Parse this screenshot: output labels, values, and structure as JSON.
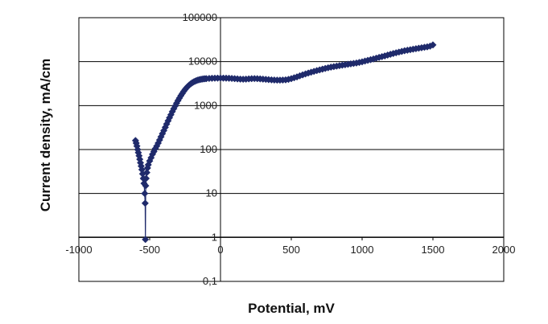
{
  "chart_data": {
    "type": "scatter",
    "title": "",
    "xlabel": "Potential, mV",
    "ylabel": "Current density, mA/cm",
    "x_scale": "linear",
    "y_scale": "log",
    "xlim": [
      -1000,
      2000
    ],
    "ylim": [
      0.1,
      100000
    ],
    "x_ticks": [
      "-1000",
      "-500",
      "0",
      "500",
      "1000",
      "1500",
      "2000"
    ],
    "y_ticks": [
      "100000",
      "10000",
      "1000",
      "100",
      "10",
      "1",
      "0,1"
    ],
    "grid": "horizontal major",
    "legend": "none",
    "series": [
      {
        "marker": "diamond",
        "color": "#1f2a6b",
        "points": [
          {
            "x": -600,
            "y": 160
          },
          {
            "x": -595,
            "y": 140
          },
          {
            "x": -590,
            "y": 120
          },
          {
            "x": -585,
            "y": 100
          },
          {
            "x": -580,
            "y": 85
          },
          {
            "x": -575,
            "y": 72
          },
          {
            "x": -570,
            "y": 60
          },
          {
            "x": -565,
            "y": 50
          },
          {
            "x": -560,
            "y": 42
          },
          {
            "x": -555,
            "y": 35
          },
          {
            "x": -550,
            "y": 28
          },
          {
            "x": -545,
            "y": 22
          },
          {
            "x": -540,
            "y": 17
          },
          {
            "x": -535,
            "y": 10
          },
          {
            "x": -532,
            "y": 6
          },
          {
            "x": -530,
            "y": 0.9
          },
          {
            "x": -528,
            "y": 15
          },
          {
            "x": -525,
            "y": 22
          },
          {
            "x": -520,
            "y": 30
          },
          {
            "x": -515,
            "y": 38
          },
          {
            "x": -510,
            "y": 45
          },
          {
            "x": -500,
            "y": 55
          },
          {
            "x": -490,
            "y": 65
          },
          {
            "x": -480,
            "y": 78
          },
          {
            "x": -470,
            "y": 90
          },
          {
            "x": -460,
            "y": 105
          },
          {
            "x": -450,
            "y": 120
          },
          {
            "x": -440,
            "y": 140
          },
          {
            "x": -430,
            "y": 165
          },
          {
            "x": -420,
            "y": 195
          },
          {
            "x": -410,
            "y": 230
          },
          {
            "x": -400,
            "y": 270
          },
          {
            "x": -390,
            "y": 320
          },
          {
            "x": -380,
            "y": 380
          },
          {
            "x": -370,
            "y": 450
          },
          {
            "x": -360,
            "y": 530
          },
          {
            "x": -350,
            "y": 620
          },
          {
            "x": -340,
            "y": 730
          },
          {
            "x": -330,
            "y": 850
          },
          {
            "x": -320,
            "y": 980
          },
          {
            "x": -310,
            "y": 1130
          },
          {
            "x": -300,
            "y": 1300
          },
          {
            "x": -290,
            "y": 1480
          },
          {
            "x": -280,
            "y": 1680
          },
          {
            "x": -270,
            "y": 1880
          },
          {
            "x": -260,
            "y": 2100
          },
          {
            "x": -250,
            "y": 2320
          },
          {
            "x": -240,
            "y": 2540
          },
          {
            "x": -230,
            "y": 2750
          },
          {
            "x": -220,
            "y": 2950
          },
          {
            "x": -210,
            "y": 3130
          },
          {
            "x": -200,
            "y": 3300
          },
          {
            "x": -190,
            "y": 3450
          },
          {
            "x": -180,
            "y": 3580
          },
          {
            "x": -170,
            "y": 3700
          },
          {
            "x": -160,
            "y": 3800
          },
          {
            "x": -150,
            "y": 3880
          },
          {
            "x": -140,
            "y": 3950
          },
          {
            "x": -130,
            "y": 4000
          },
          {
            "x": -120,
            "y": 4050
          },
          {
            "x": -110,
            "y": 4080
          },
          {
            "x": -100,
            "y": 4100
          },
          {
            "x": -80,
            "y": 4150
          },
          {
            "x": -60,
            "y": 4180
          },
          {
            "x": -40,
            "y": 4200
          },
          {
            "x": -20,
            "y": 4220
          },
          {
            "x": 0,
            "y": 4230
          },
          {
            "x": 20,
            "y": 4220
          },
          {
            "x": 40,
            "y": 4200
          },
          {
            "x": 60,
            "y": 4180
          },
          {
            "x": 80,
            "y": 4150
          },
          {
            "x": 100,
            "y": 4100
          },
          {
            "x": 120,
            "y": 4050
          },
          {
            "x": 140,
            "y": 4000
          },
          {
            "x": 160,
            "y": 3980
          },
          {
            "x": 180,
            "y": 4000
          },
          {
            "x": 200,
            "y": 4050
          },
          {
            "x": 220,
            "y": 4100
          },
          {
            "x": 240,
            "y": 4120
          },
          {
            "x": 260,
            "y": 4100
          },
          {
            "x": 280,
            "y": 4050
          },
          {
            "x": 300,
            "y": 4000
          },
          {
            "x": 320,
            "y": 3950
          },
          {
            "x": 340,
            "y": 3900
          },
          {
            "x": 360,
            "y": 3850
          },
          {
            "x": 380,
            "y": 3820
          },
          {
            "x": 400,
            "y": 3800
          },
          {
            "x": 420,
            "y": 3800
          },
          {
            "x": 440,
            "y": 3820
          },
          {
            "x": 460,
            "y": 3850
          },
          {
            "x": 480,
            "y": 3950
          },
          {
            "x": 500,
            "y": 4100
          },
          {
            "x": 520,
            "y": 4300
          },
          {
            "x": 540,
            "y": 4500
          },
          {
            "x": 560,
            "y": 4750
          },
          {
            "x": 580,
            "y": 5000
          },
          {
            "x": 600,
            "y": 5250
          },
          {
            "x": 620,
            "y": 5500
          },
          {
            "x": 640,
            "y": 5750
          },
          {
            "x": 660,
            "y": 6000
          },
          {
            "x": 680,
            "y": 6250
          },
          {
            "x": 700,
            "y": 6500
          },
          {
            "x": 720,
            "y": 6750
          },
          {
            "x": 740,
            "y": 7000
          },
          {
            "x": 760,
            "y": 7250
          },
          {
            "x": 780,
            "y": 7500
          },
          {
            "x": 800,
            "y": 7700
          },
          {
            "x": 820,
            "y": 7900
          },
          {
            "x": 840,
            "y": 8100
          },
          {
            "x": 860,
            "y": 8300
          },
          {
            "x": 880,
            "y": 8500
          },
          {
            "x": 900,
            "y": 8700
          },
          {
            "x": 920,
            "y": 8900
          },
          {
            "x": 940,
            "y": 9100
          },
          {
            "x": 960,
            "y": 9300
          },
          {
            "x": 980,
            "y": 9600
          },
          {
            "x": 1000,
            "y": 9900
          },
          {
            "x": 1020,
            "y": 10300
          },
          {
            "x": 1040,
            "y": 10700
          },
          {
            "x": 1060,
            "y": 11100
          },
          {
            "x": 1080,
            "y": 11500
          },
          {
            "x": 1100,
            "y": 12000
          },
          {
            "x": 1120,
            "y": 12500
          },
          {
            "x": 1140,
            "y": 13000
          },
          {
            "x": 1160,
            "y": 13500
          },
          {
            "x": 1180,
            "y": 14100
          },
          {
            "x": 1200,
            "y": 14700
          },
          {
            "x": 1220,
            "y": 15300
          },
          {
            "x": 1240,
            "y": 15900
          },
          {
            "x": 1260,
            "y": 16500
          },
          {
            "x": 1280,
            "y": 17100
          },
          {
            "x": 1300,
            "y": 17700
          },
          {
            "x": 1320,
            "y": 18200
          },
          {
            "x": 1340,
            "y": 18700
          },
          {
            "x": 1360,
            "y": 19200
          },
          {
            "x": 1380,
            "y": 19700
          },
          {
            "x": 1400,
            "y": 20200
          },
          {
            "x": 1420,
            "y": 20700
          },
          {
            "x": 1440,
            "y": 21200
          },
          {
            "x": 1460,
            "y": 21700
          },
          {
            "x": 1480,
            "y": 22500
          },
          {
            "x": 1500,
            "y": 24000
          }
        ]
      }
    ]
  }
}
